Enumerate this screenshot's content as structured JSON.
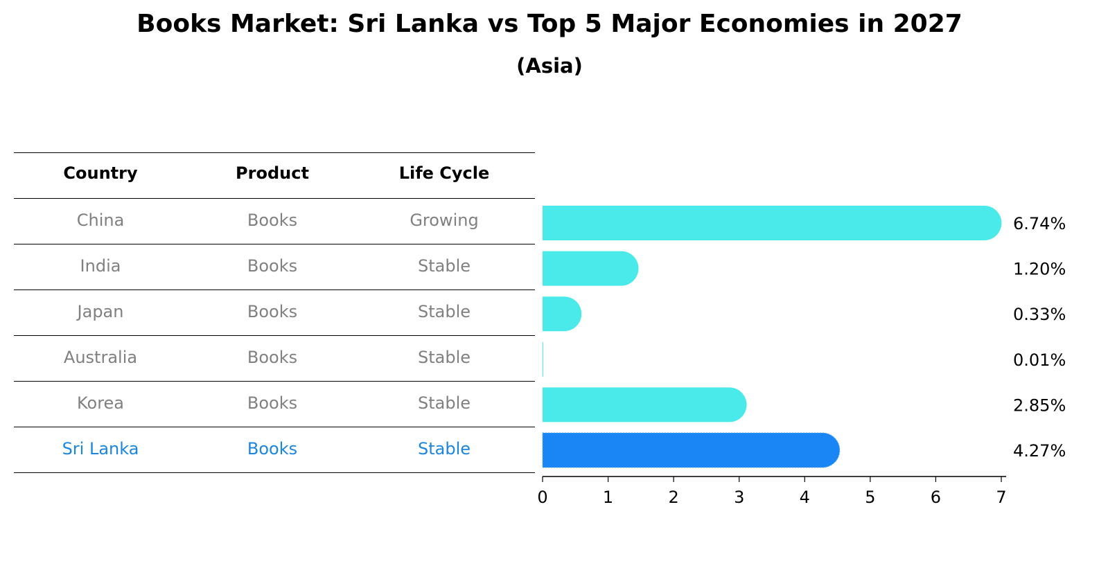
{
  "title": "Books Market: Sri Lanka vs Top 5 Major Economies in 2027",
  "subtitle": "(Asia)",
  "table": {
    "headers": [
      "Country",
      "Product",
      "Life Cycle"
    ],
    "rows": [
      {
        "country": "China",
        "product": "Books",
        "life_cycle": "Growing"
      },
      {
        "country": "India",
        "product": "Books",
        "life_cycle": "Stable"
      },
      {
        "country": "Japan",
        "product": "Books",
        "life_cycle": "Stable"
      },
      {
        "country": "Australia",
        "product": "Books",
        "life_cycle": "Stable"
      },
      {
        "country": "Korea",
        "product": "Books",
        "life_cycle": "Stable"
      },
      {
        "country": "Sri Lanka",
        "product": "Books",
        "life_cycle": "Stable"
      }
    ],
    "highlight_row": "Sri Lanka"
  },
  "colors": {
    "bar": "#4beaea",
    "highlight_bar": "#1a86f5",
    "highlight_text": "#1a86e0",
    "row_text": "#808080"
  },
  "chart_data": {
    "type": "bar",
    "orientation": "horizontal",
    "categories": [
      "China",
      "India",
      "Japan",
      "Australia",
      "Korea",
      "Sri Lanka"
    ],
    "values": [
      6.74,
      1.2,
      0.33,
      0.01,
      2.85,
      4.27
    ],
    "value_labels": [
      "6.74%",
      "1.20%",
      "0.33%",
      "0.01%",
      "2.85%",
      "4.27%"
    ],
    "xlim": [
      0,
      7
    ],
    "xticks": [
      0,
      1,
      2,
      3,
      4,
      5,
      6,
      7
    ],
    "highlight": "Sri Lanka",
    "grid": false
  }
}
